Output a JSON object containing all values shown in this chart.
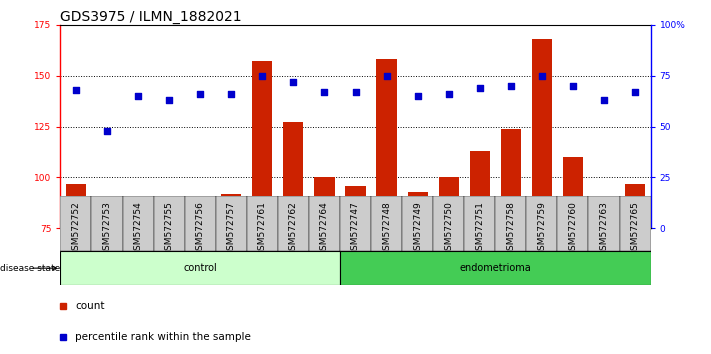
{
  "title": "GDS3975 / ILMN_1882021",
  "samples": [
    "GSM572752",
    "GSM572753",
    "GSM572754",
    "GSM572755",
    "GSM572756",
    "GSM572757",
    "GSM572761",
    "GSM572762",
    "GSM572764",
    "GSM572747",
    "GSM572748",
    "GSM572749",
    "GSM572750",
    "GSM572751",
    "GSM572758",
    "GSM572759",
    "GSM572760",
    "GSM572763",
    "GSM572765"
  ],
  "counts": [
    97,
    75,
    88,
    86,
    91,
    92,
    157,
    127,
    100,
    96,
    158,
    93,
    100,
    113,
    124,
    168,
    110,
    84,
    97
  ],
  "percentiles": [
    68,
    48,
    65,
    63,
    66,
    66,
    75,
    72,
    67,
    67,
    75,
    65,
    66,
    69,
    70,
    75,
    70,
    63,
    67
  ],
  "control_count": 9,
  "endometrioma_count": 10,
  "ylim_left": [
    75,
    175
  ],
  "ylim_right": [
    0,
    100
  ],
  "yticks_left": [
    75,
    100,
    125,
    150,
    175
  ],
  "yticks_right": [
    0,
    25,
    50,
    75,
    100
  ],
  "ytick_right_labels": [
    "0",
    "25",
    "50",
    "75",
    "100%"
  ],
  "bar_color": "#cc2200",
  "dot_color": "#0000cc",
  "control_bg": "#ccffcc",
  "endometrioma_bg": "#44cc55",
  "sample_bg": "#cccccc",
  "grid_color": "black",
  "disease_state_label": "disease state",
  "control_label": "control",
  "endometrioma_label": "endometrioma",
  "legend_count": "count",
  "legend_percentile": "percentile rank within the sample",
  "title_fontsize": 10,
  "tick_fontsize": 6.5,
  "label_fontsize": 7.5,
  "ds_fontsize": 7.0
}
